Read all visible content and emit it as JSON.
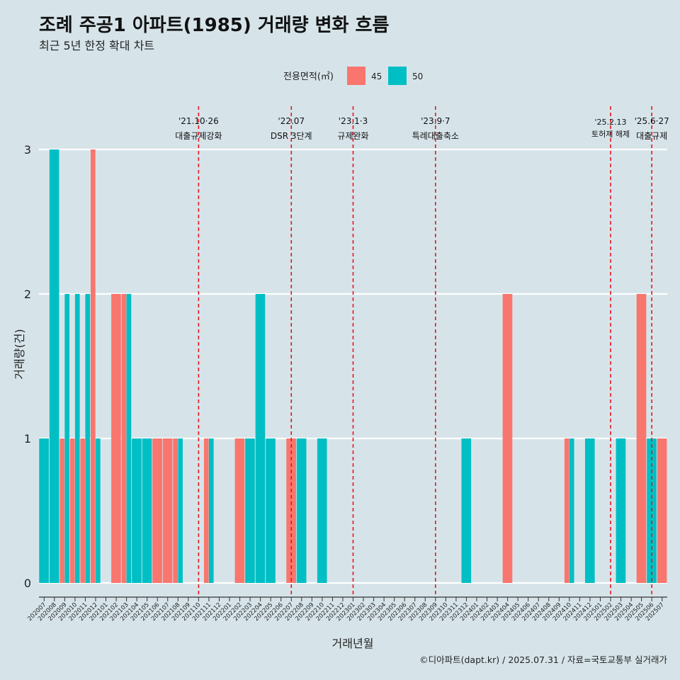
{
  "chart_data": {
    "type": "bar",
    "title": "조례 주공1 아파트(1985) 거래량 변화 흐름",
    "subtitle": "최근 5년 한정 확대 차트",
    "xlabel": "거래년월",
    "ylabel": "거래량(건)",
    "ylim": [
      0,
      3
    ],
    "yticks": [
      "0",
      "1",
      "2",
      "3"
    ],
    "legend": {
      "title": "전용면적(㎡)",
      "placement": "top"
    },
    "categories": [
      "202007",
      "202008",
      "202009",
      "202010",
      "202011",
      "202012",
      "202101",
      "202102",
      "202103",
      "202104",
      "202105",
      "202106",
      "202107",
      "202108",
      "202109",
      "202110",
      "202111",
      "202112",
      "202201",
      "202202",
      "202203",
      "202204",
      "202205",
      "202206",
      "202207",
      "202208",
      "202209",
      "202210",
      "202211",
      "202212",
      "202301",
      "202302",
      "202303",
      "202304",
      "202305",
      "202306",
      "202307",
      "202308",
      "202309",
      "202310",
      "202311",
      "202312",
      "202401",
      "202402",
      "202403",
      "202404",
      "202405",
      "202406",
      "202407",
      "202408",
      "202409",
      "202410",
      "202411",
      "202412",
      "202501",
      "202502",
      "202503",
      "202504",
      "202505",
      "202506",
      "202507"
    ],
    "series": [
      {
        "name": "45",
        "color": "#f8766d",
        "values": [
          0,
          0,
          1,
          1,
          1,
          3,
          0,
          2,
          2,
          0,
          0,
          1,
          1,
          1,
          0,
          0,
          1,
          0,
          0,
          1,
          0,
          0,
          0,
          0,
          1,
          0,
          0,
          0,
          0,
          0,
          0,
          0,
          0,
          0,
          0,
          0,
          0,
          0,
          0,
          0,
          0,
          0,
          0,
          0,
          0,
          2,
          0,
          0,
          0,
          0,
          0,
          1,
          0,
          0,
          0,
          0,
          0,
          0,
          2,
          0,
          1
        ]
      },
      {
        "name": "50",
        "color": "#00bfc4",
        "values": [
          1,
          3,
          2,
          2,
          2,
          1,
          0,
          0,
          2,
          1,
          1,
          0,
          0,
          1,
          0,
          0,
          1,
          0,
          0,
          0,
          1,
          2,
          1,
          0,
          0,
          1,
          0,
          1,
          0,
          0,
          0,
          0,
          0,
          0,
          0,
          0,
          0,
          0,
          0,
          0,
          0,
          1,
          0,
          0,
          0,
          0,
          0,
          0,
          0,
          0,
          0,
          1,
          0,
          1,
          0,
          0,
          1,
          0,
          0,
          1,
          0
        ]
      }
    ],
    "events": [
      {
        "label": "'21.10·26",
        "desc": "대출규제강화",
        "at": "202110"
      },
      {
        "label": "'22.07",
        "desc": "DSR 3단계",
        "at": "202207"
      },
      {
        "label": "'23.1·3",
        "desc": "규제완화",
        "at": "202301"
      },
      {
        "label": "'23.9·7",
        "desc": "특례대출축소",
        "at": "202309"
      },
      {
        "label": "'25.2.13",
        "desc": "토허제 해제",
        "at": "202502"
      },
      {
        "label": "'25.6·27",
        "desc": "대출규제",
        "at": "202506"
      }
    ],
    "grid": "horizontal",
    "caption": "©디아파트(dapt.kr) / 2025.07.31 / 자료=국토교통부 실거래가"
  }
}
